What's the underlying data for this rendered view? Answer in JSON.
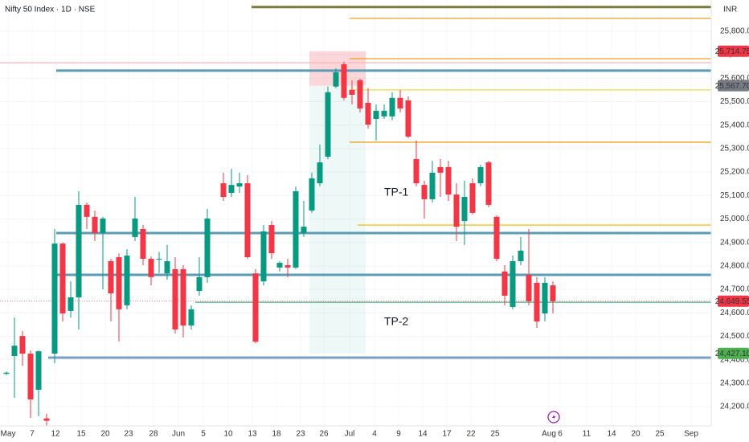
{
  "chart_data": {
    "type": "candlestick",
    "title": "Nifty 50 Index · 1D · NSE",
    "currency": "INR",
    "up_color": "#089981",
    "down_color": "#f23645",
    "x": [
      0,
      1,
      2,
      3,
      4,
      5,
      6,
      7,
      8,
      9,
      10,
      11,
      12,
      13,
      14,
      15,
      16,
      17,
      18,
      19,
      20,
      21,
      22,
      23,
      24,
      25,
      27,
      28,
      29,
      30,
      31,
      32,
      33,
      34,
      35,
      36,
      37,
      38,
      39,
      40,
      41,
      42,
      43,
      44,
      45,
      46,
      47,
      48,
      49,
      50,
      51,
      52,
      53,
      54,
      55,
      56,
      57,
      58,
      59,
      60,
      61,
      62,
      63,
      64,
      65,
      66,
      67,
      68
    ],
    "open": [
      24340,
      24416,
      24501,
      24426,
      24272,
      24150,
      24426,
      24895,
      24608,
      24666,
      25060,
      25009,
      24940,
      24820,
      24837,
      24632,
      24923,
      24957,
      24830,
      24827,
      24768,
      24786,
      24786,
      24546,
      24693,
      24752,
      25152,
      25111,
      25138,
      25152,
      24768,
      24734,
      24974,
      24793,
      24803,
      24793,
      24940,
      25036,
      25152,
      25265,
      25564,
      25659,
      25550,
      25591,
      25495,
      25426,
      25437,
      25437,
      25516,
      25505,
      25255,
      25145,
      25084,
      25221,
      25221,
      25104,
      24991,
      25152,
      25152,
      25241,
      25009,
      24776,
      24625,
      24820,
      24762,
      24728,
      24597,
      24717
    ],
    "high": [
      24350,
      24580,
      24522,
      24440,
      24440,
      24170,
      24957,
      24900,
      24734,
      25118,
      25070,
      25036,
      25009,
      24830,
      24854,
      24871,
      25094,
      24975,
      24840,
      24860,
      24889,
      24837,
      24803,
      24632,
      24837,
      25043,
      25197,
      25214,
      25197,
      25187,
      24786,
      24974,
      24991,
      24820,
      24830,
      25139,
      25077,
      25197,
      25317,
      25564,
      25642,
      25670,
      25591,
      25598,
      25557,
      25488,
      25488,
      25540,
      25550,
      25522,
      25334,
      25163,
      25248,
      25255,
      25248,
      25152,
      25163,
      25173,
      25231,
      25248,
      25015,
      24803,
      24844,
      24923,
      24957,
      24752,
      24752,
      24734
    ],
    "low": [
      24335,
      24238,
      24375,
      24152,
      24159,
      24120,
      24385,
      24563,
      24580,
      24529,
      24957,
      24906,
      24700,
      24563,
      24478,
      24615,
      24906,
      24803,
      24717,
      24769,
      24741,
      24512,
      24495,
      24529,
      24673,
      24728,
      25077,
      25094,
      25111,
      24830,
      24470,
      24717,
      24830,
      24776,
      24752,
      24786,
      24923,
      25026,
      25139,
      25255,
      25557,
      25505,
      25488,
      25454,
      25385,
      25334,
      25426,
      25420,
      25454,
      25344,
      25139,
      25002,
      25070,
      25094,
      25077,
      24906,
      24889,
      25020,
      25139,
      25050,
      24820,
      24632,
      24615,
      24803,
      24632,
      24536,
      24563,
      24597
    ],
    "close": [
      24345,
      24460,
      24426,
      24231,
      24436,
      24140,
      24895,
      24597,
      24666,
      25060,
      25009,
      24940,
      25002,
      24683,
      24615,
      24844,
      25002,
      24830,
      24752,
      24830,
      24820,
      24529,
      24546,
      24615,
      24752,
      25002,
      25094,
      25145,
      25152,
      24837,
      24477,
      24947,
      24854,
      24813,
      24793,
      25118,
      24967,
      25173,
      25241,
      25540,
      25625,
      25516,
      25529,
      25471,
      25402,
      25461,
      25461,
      25516,
      25471,
      25351,
      25152,
      25084,
      25197,
      25197,
      25104,
      24967,
      25094,
      25026,
      25221,
      25060,
      24830,
      24673,
      24820,
      24865,
      24649,
      24563,
      24728,
      24649
    ],
    "xlim": [
      -0.8,
      87.7
    ],
    "ylim": [
      24118,
      25933
    ],
    "xticks": [
      {
        "value": 0.2,
        "label": "May"
      },
      {
        "value": 3.2,
        "label": "7"
      },
      {
        "value": 6.1,
        "label": "12"
      },
      {
        "value": 9.3,
        "label": "15"
      },
      {
        "value": 12.3,
        "label": "20"
      },
      {
        "value": 15.2,
        "label": "23"
      },
      {
        "value": 18.3,
        "label": "28"
      },
      {
        "value": 21.4,
        "label": "Jun"
      },
      {
        "value": 24.5,
        "label": "5"
      },
      {
        "value": 27.6,
        "label": "10"
      },
      {
        "value": 30.6,
        "label": "13"
      },
      {
        "value": 33.6,
        "label": "18"
      },
      {
        "value": 36.6,
        "label": "23"
      },
      {
        "value": 39.5,
        "label": "26"
      },
      {
        "value": 42.7,
        "label": "Jul"
      },
      {
        "value": 45.8,
        "label": "4"
      },
      {
        "value": 48.8,
        "label": "9"
      },
      {
        "value": 51.8,
        "label": "14"
      },
      {
        "value": 54.8,
        "label": "17"
      },
      {
        "value": 57.8,
        "label": "22"
      },
      {
        "value": 60.8,
        "label": "25"
      },
      {
        "value": 67.5,
        "label": "Aug"
      },
      {
        "value": 68.9,
        "label": "6"
      },
      {
        "value": 72.2,
        "label": "11"
      },
      {
        "value": 75.3,
        "label": "14"
      },
      {
        "value": 78.3,
        "label": "20"
      },
      {
        "value": 81.3,
        "label": "25"
      },
      {
        "value": 85.2,
        "label": "Sep"
      }
    ],
    "yticks": [
      {
        "value": 24200,
        "label": "24,200.00"
      },
      {
        "value": 24300,
        "label": "24,300.00"
      },
      {
        "value": 24400,
        "label": "24,400.00"
      },
      {
        "value": 24500,
        "label": "24,500.00"
      },
      {
        "value": 24600,
        "label": "24,600.00"
      },
      {
        "value": 24700,
        "label": "24,700.00"
      },
      {
        "value": 24800,
        "label": "24,800.00"
      },
      {
        "value": 24900,
        "label": "24,900.00"
      },
      {
        "value": 25000,
        "label": "25,000.00"
      },
      {
        "value": 25100,
        "label": "25,100.00"
      },
      {
        "value": 25200,
        "label": "25,200.00"
      },
      {
        "value": 25300,
        "label": "25,300.00"
      },
      {
        "value": 25400,
        "label": "25,400.00"
      },
      {
        "value": 25500,
        "label": "25,500.00"
      },
      {
        "value": 25600,
        "label": "25,600.00"
      },
      {
        "value": 25700,
        "label": "25,700.00"
      },
      {
        "value": 25800,
        "label": "25,800.00"
      }
    ],
    "grid": true,
    "levels": [
      {
        "value": 25903,
        "x_start": 30.5,
        "color": "#7d7a3c"
      },
      {
        "value": 25855,
        "x_start": 42.7,
        "color": "#f0a020"
      },
      {
        "value": 25683,
        "x_start": 42.7,
        "color": "#f0a020"
      },
      {
        "value": 25666,
        "x_start": -0.8,
        "color": "#f7b5bb"
      },
      {
        "value": 25632,
        "x_start": 6.2,
        "color": "#5b9bb5"
      },
      {
        "value": 25550,
        "x_start": 42.7,
        "color": "#f5d94a"
      },
      {
        "value": 25327,
        "x_start": 42.7,
        "color": "#f0a020"
      },
      {
        "value": 24974,
        "x_start": 43.7,
        "color": "#f0c020"
      },
      {
        "value": 24940,
        "x_start": 6.2,
        "color": "#5b9bb5"
      },
      {
        "value": 24762,
        "x_start": 6.2,
        "color": "#5b9bb5"
      },
      {
        "value": 24645,
        "x_start": 23.5,
        "color": "#4caf80"
      },
      {
        "value": 24409,
        "x_start": 5.2,
        "color": "#7a9fc0"
      }
    ],
    "position": {
      "x_start": 37.7,
      "x_end": 44.7,
      "stop": {
        "value": 25714.75,
        "label": "25,714.75"
      },
      "entry": {
        "value": 25567.7,
        "label": "25,567.70"
      },
      "target": {
        "value": 24427.1,
        "label": "24,427.10"
      }
    },
    "last_price": {
      "value": 24649.55,
      "label": "24,649.55"
    },
    "annotations": [
      {
        "text": "TP-1",
        "x": 47,
        "y": 25111
      },
      {
        "text": "TP-2",
        "x": 47,
        "y": 24560
      }
    ]
  }
}
